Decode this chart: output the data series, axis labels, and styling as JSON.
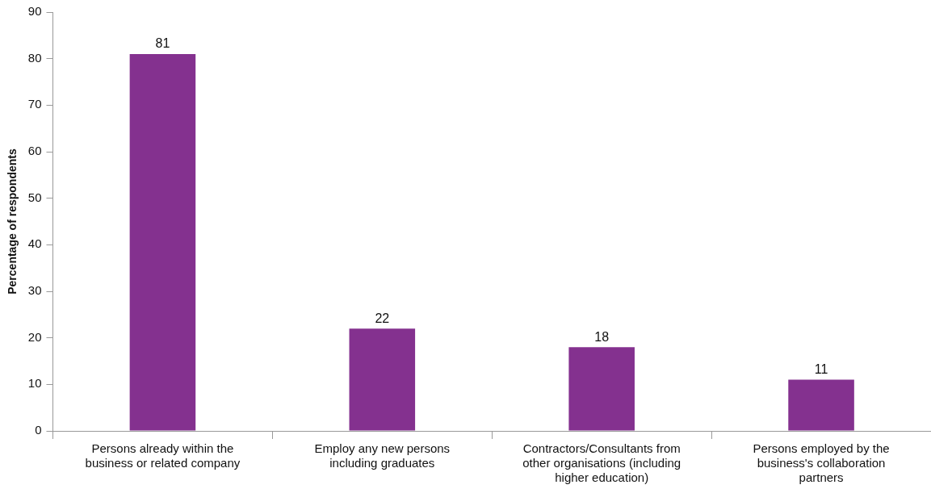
{
  "chart_data": {
    "type": "bar",
    "ylabel": "Percentage of respondents",
    "categories": [
      "Persons already within the business or related company",
      "Employ any new persons including graduates",
      "Contractors/Consultants from other organisations (including higher education)",
      "Persons employed by the business's collaboration partners"
    ],
    "values": [
      81,
      22,
      18,
      11
    ],
    "color": "#84318f",
    "ylim": [
      0,
      90
    ],
    "yticks": [
      0,
      10,
      20,
      30,
      40,
      50,
      60,
      70,
      80,
      90
    ],
    "grid": false,
    "legend": false,
    "data_labels": true
  }
}
